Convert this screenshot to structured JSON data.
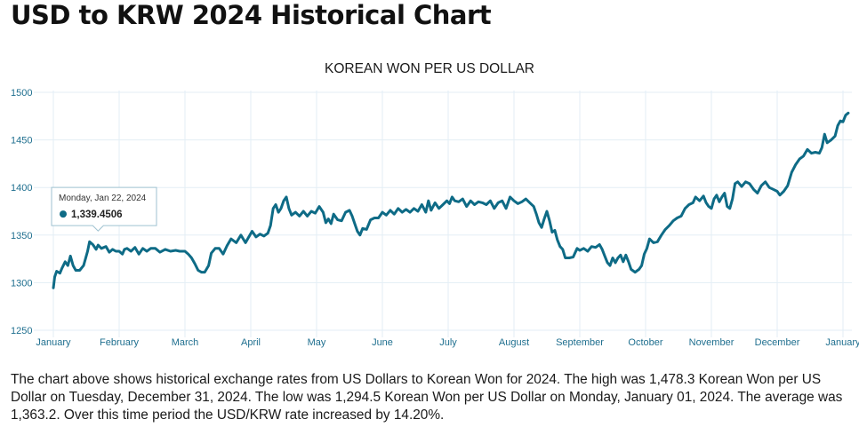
{
  "page": {
    "title": "USD to KRW 2024 Historical Chart",
    "summary": "The chart above shows historical exchange rates from US Dollars to Korean Won for 2024. The high was 1,478.3 Korean Won per US Dollar on Tuesday, December 31, 2024. The low was 1,294.5 Korean Won per US Dollar on Monday, January 01, 2024. The average was 1,363.2. Over this time period the USD/KRW rate increased by 14.20%."
  },
  "chart_data": {
    "type": "line",
    "title": "KOREAN WON PER US DOLLAR",
    "xlabel": "",
    "ylabel": "",
    "x_ticks": [
      "January",
      "February",
      "March",
      "April",
      "May",
      "June",
      "July",
      "August",
      "September",
      "October",
      "November",
      "December",
      "January"
    ],
    "y_ticks": [
      1250,
      1300,
      1350,
      1400,
      1450,
      1500
    ],
    "ylim": [
      1250,
      1500
    ],
    "grid": true,
    "line_color": "#0e6b86",
    "tooltip": {
      "date": "Monday, Jan 22, 2024",
      "value": "1,339.4506",
      "month_index": 0.68
    },
    "series": [
      {
        "values": [
          [
            0.0,
            1294.5
          ],
          [
            0.02,
            1306
          ],
          [
            0.05,
            1312
          ],
          [
            0.1,
            1310
          ],
          [
            0.13,
            1315
          ],
          [
            0.18,
            1322
          ],
          [
            0.22,
            1318
          ],
          [
            0.26,
            1328
          ],
          [
            0.3,
            1318
          ],
          [
            0.34,
            1313
          ],
          [
            0.4,
            1313
          ],
          [
            0.46,
            1318
          ],
          [
            0.52,
            1333
          ],
          [
            0.55,
            1343
          ],
          [
            0.6,
            1340
          ],
          [
            0.65,
            1335
          ],
          [
            0.68,
            1339.45
          ],
          [
            0.73,
            1336
          ],
          [
            0.8,
            1338
          ],
          [
            0.85,
            1332
          ],
          [
            0.9,
            1335
          ],
          [
            0.95,
            1333
          ],
          [
            1.0,
            1333
          ],
          [
            1.05,
            1330
          ],
          [
            1.08,
            1335
          ],
          [
            1.12,
            1336
          ],
          [
            1.18,
            1333
          ],
          [
            1.24,
            1337
          ],
          [
            1.3,
            1330
          ],
          [
            1.36,
            1336
          ],
          [
            1.42,
            1333
          ],
          [
            1.48,
            1336
          ],
          [
            1.55,
            1336
          ],
          [
            1.62,
            1332
          ],
          [
            1.7,
            1335
          ],
          [
            1.78,
            1333
          ],
          [
            1.86,
            1334
          ],
          [
            1.92,
            1333
          ],
          [
            2.0,
            1333
          ],
          [
            2.05,
            1330
          ],
          [
            2.1,
            1326
          ],
          [
            2.15,
            1320
          ],
          [
            2.2,
            1313
          ],
          [
            2.25,
            1311
          ],
          [
            2.3,
            1311
          ],
          [
            2.36,
            1318
          ],
          [
            2.4,
            1331
          ],
          [
            2.46,
            1336
          ],
          [
            2.52,
            1336
          ],
          [
            2.58,
            1330
          ],
          [
            2.64,
            1339
          ],
          [
            2.7,
            1346
          ],
          [
            2.78,
            1342
          ],
          [
            2.85,
            1350
          ],
          [
            2.92,
            1342
          ],
          [
            2.97,
            1348
          ],
          [
            3.02,
            1354
          ],
          [
            3.08,
            1348
          ],
          [
            3.14,
            1351
          ],
          [
            3.2,
            1349
          ],
          [
            3.26,
            1352
          ],
          [
            3.3,
            1360
          ],
          [
            3.34,
            1378
          ],
          [
            3.38,
            1382
          ],
          [
            3.42,
            1374
          ],
          [
            3.46,
            1378
          ],
          [
            3.5,
            1386
          ],
          [
            3.54,
            1390
          ],
          [
            3.58,
            1378
          ],
          [
            3.62,
            1371
          ],
          [
            3.68,
            1374
          ],
          [
            3.74,
            1370
          ],
          [
            3.8,
            1375
          ],
          [
            3.86,
            1370
          ],
          [
            3.92,
            1375
          ],
          [
            3.98,
            1373
          ],
          [
            4.04,
            1380
          ],
          [
            4.1,
            1374
          ],
          [
            4.14,
            1363
          ],
          [
            4.18,
            1367
          ],
          [
            4.22,
            1362
          ],
          [
            4.26,
            1372
          ],
          [
            4.32,
            1366
          ],
          [
            4.38,
            1365
          ],
          [
            4.44,
            1374
          ],
          [
            4.5,
            1376
          ],
          [
            4.54,
            1370
          ],
          [
            4.58,
            1362
          ],
          [
            4.62,
            1354
          ],
          [
            4.66,
            1350
          ],
          [
            4.7,
            1357
          ],
          [
            4.76,
            1356
          ],
          [
            4.82,
            1366
          ],
          [
            4.88,
            1368
          ],
          [
            4.94,
            1368
          ],
          [
            5.0,
            1374
          ],
          [
            5.06,
            1371
          ],
          [
            5.12,
            1376
          ],
          [
            5.18,
            1372
          ],
          [
            5.24,
            1378
          ],
          [
            5.3,
            1374
          ],
          [
            5.36,
            1377
          ],
          [
            5.42,
            1374
          ],
          [
            5.48,
            1378
          ],
          [
            5.54,
            1375
          ],
          [
            5.6,
            1382
          ],
          [
            5.66,
            1374
          ],
          [
            5.7,
            1386
          ],
          [
            5.74,
            1376
          ],
          [
            5.8,
            1384
          ],
          [
            5.86,
            1378
          ],
          [
            5.92,
            1382
          ],
          [
            5.98,
            1386
          ],
          [
            6.02,
            1383
          ],
          [
            6.06,
            1390
          ],
          [
            6.1,
            1386
          ],
          [
            6.16,
            1385
          ],
          [
            6.22,
            1388
          ],
          [
            6.28,
            1380
          ],
          [
            6.34,
            1386
          ],
          [
            6.4,
            1382
          ],
          [
            6.46,
            1385
          ],
          [
            6.52,
            1384
          ],
          [
            6.58,
            1382
          ],
          [
            6.64,
            1386
          ],
          [
            6.7,
            1378
          ],
          [
            6.76,
            1384
          ],
          [
            6.82,
            1386
          ],
          [
            6.88,
            1378
          ],
          [
            6.94,
            1390
          ],
          [
            7.0,
            1386
          ],
          [
            7.06,
            1383
          ],
          [
            7.12,
            1385
          ],
          [
            7.18,
            1388
          ],
          [
            7.24,
            1384
          ],
          [
            7.3,
            1380
          ],
          [
            7.34,
            1372
          ],
          [
            7.38,
            1363
          ],
          [
            7.42,
            1358
          ],
          [
            7.46,
            1367
          ],
          [
            7.5,
            1375
          ],
          [
            7.54,
            1365
          ],
          [
            7.58,
            1353
          ],
          [
            7.62,
            1355
          ],
          [
            7.66,
            1345
          ],
          [
            7.7,
            1338
          ],
          [
            7.74,
            1335
          ],
          [
            7.78,
            1326
          ],
          [
            7.84,
            1326
          ],
          [
            7.9,
            1327
          ],
          [
            7.96,
            1336
          ],
          [
            8.0,
            1334
          ],
          [
            8.06,
            1336
          ],
          [
            8.12,
            1333
          ],
          [
            8.18,
            1338
          ],
          [
            8.24,
            1337
          ],
          [
            8.3,
            1340
          ],
          [
            8.34,
            1335
          ],
          [
            8.38,
            1328
          ],
          [
            8.42,
            1321
          ],
          [
            8.46,
            1318
          ],
          [
            8.5,
            1326
          ],
          [
            8.54,
            1321
          ],
          [
            8.58,
            1326
          ],
          [
            8.62,
            1329
          ],
          [
            8.66,
            1322
          ],
          [
            8.7,
            1329
          ],
          [
            8.74,
            1322
          ],
          [
            8.78,
            1314
          ],
          [
            8.84,
            1311
          ],
          [
            8.9,
            1314
          ],
          [
            8.94,
            1318
          ],
          [
            8.98,
            1330
          ],
          [
            9.02,
            1336
          ],
          [
            9.06,
            1346
          ],
          [
            9.12,
            1342
          ],
          [
            9.18,
            1343
          ],
          [
            9.24,
            1350
          ],
          [
            9.3,
            1356
          ],
          [
            9.36,
            1360
          ],
          [
            9.42,
            1365
          ],
          [
            9.48,
            1368
          ],
          [
            9.54,
            1370
          ],
          [
            9.6,
            1378
          ],
          [
            9.66,
            1382
          ],
          [
            9.72,
            1384
          ],
          [
            9.76,
            1390
          ],
          [
            9.82,
            1386
          ],
          [
            9.88,
            1391
          ],
          [
            9.92,
            1384
          ],
          [
            9.96,
            1380
          ],
          [
            10.0,
            1378
          ],
          [
            10.04,
            1388
          ],
          [
            10.08,
            1392
          ],
          [
            10.12,
            1385
          ],
          [
            10.16,
            1390
          ],
          [
            10.2,
            1394
          ],
          [
            10.24,
            1380
          ],
          [
            10.28,
            1378
          ],
          [
            10.32,
            1388
          ],
          [
            10.36,
            1404
          ],
          [
            10.4,
            1406
          ],
          [
            10.46,
            1401
          ],
          [
            10.52,
            1406
          ],
          [
            10.58,
            1404
          ],
          [
            10.64,
            1398
          ],
          [
            10.7,
            1394
          ],
          [
            10.76,
            1402
          ],
          [
            10.82,
            1406
          ],
          [
            10.88,
            1400
          ],
          [
            10.94,
            1398
          ],
          [
            11.0,
            1396
          ],
          [
            11.04,
            1392
          ],
          [
            11.1,
            1396
          ],
          [
            11.16,
            1402
          ],
          [
            11.22,
            1416
          ],
          [
            11.28,
            1424
          ],
          [
            11.34,
            1430
          ],
          [
            11.4,
            1433
          ],
          [
            11.46,
            1440
          ],
          [
            11.52,
            1436
          ],
          [
            11.58,
            1437
          ],
          [
            11.64,
            1436
          ],
          [
            11.68,
            1442
          ],
          [
            11.72,
            1456
          ],
          [
            11.76,
            1447
          ],
          [
            11.82,
            1450
          ],
          [
            11.88,
            1454
          ],
          [
            11.92,
            1465
          ],
          [
            11.96,
            1470
          ],
          [
            12.0,
            1469
          ],
          [
            12.04,
            1476
          ],
          [
            12.08,
            1478.3
          ]
        ]
      }
    ]
  }
}
